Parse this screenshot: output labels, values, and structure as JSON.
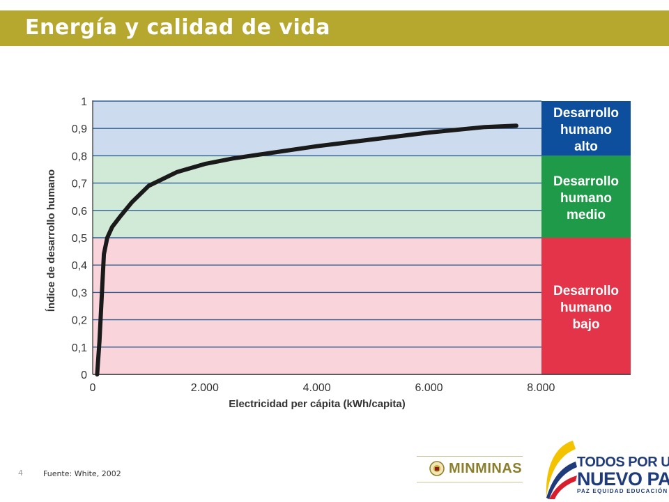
{
  "slide": {
    "title": "Energía y calidad de vida",
    "page_number": "4",
    "source": "Fuente: White, 2002"
  },
  "logos": {
    "minminas": "MINMINAS",
    "todos_line1": "TODOS POR UN",
    "todos_line2": "NUEVO PAÍS",
    "todos_line3": "PAZ EQUIDAD EDUCACIÓN"
  },
  "colors": {
    "title_bar": "#b6a82e",
    "band_high": "#cddbef",
    "band_medium": "#d1ead7",
    "band_low": "#f9d5db",
    "label_high": "#0d4f9d",
    "label_medium": "#1e9a48",
    "label_low": "#e43449",
    "gridline": "#2f5f93",
    "curve": "#1a1a1a"
  },
  "chart_data": {
    "type": "line",
    "title": "",
    "xlabel": "Electricidad per cápita (kWh/capita)",
    "ylabel": "Índice de desarrollo humano",
    "xlim": [
      0,
      9600
    ],
    "ylim": [
      0,
      1
    ],
    "x_tick_values": [
      0,
      2000,
      4000,
      6000,
      8000
    ],
    "x_tick_labels": [
      "0",
      "2.000",
      "4.000",
      "6.000",
      "8.000"
    ],
    "y_tick_values": [
      0,
      0.1,
      0.2,
      0.3,
      0.4,
      0.5,
      0.6,
      0.7,
      0.8,
      0.9,
      1
    ],
    "y_tick_labels": [
      "0",
      "0,1",
      "0,2",
      "0,3",
      "0,4",
      "0,5",
      "0,6",
      "0,7",
      "0,8",
      "0,9",
      "1"
    ],
    "grid": true,
    "series": [
      {
        "x": [
          80,
          120,
          160,
          200,
          260,
          350,
          500,
          700,
          1000,
          1500,
          2000,
          2500,
          3000,
          4000,
          5000,
          6000,
          7000,
          7560
        ],
        "y": [
          0,
          0.12,
          0.28,
          0.44,
          0.5,
          0.54,
          0.58,
          0.63,
          0.69,
          0.74,
          0.77,
          0.79,
          0.805,
          0.835,
          0.86,
          0.885,
          0.905,
          0.91
        ]
      }
    ],
    "bands": [
      {
        "from": 0.8,
        "to": 1.0,
        "level": "high",
        "label_lines": [
          "Desarrollo",
          "humano",
          "alto"
        ]
      },
      {
        "from": 0.5,
        "to": 0.8,
        "level": "medium",
        "label_lines": [
          "Desarrollo",
          "humano",
          "medio"
        ]
      },
      {
        "from": 0.0,
        "to": 0.5,
        "level": "low",
        "label_lines": [
          "Desarrollo",
          "humano",
          "bajo"
        ]
      }
    ],
    "legend": "none"
  }
}
